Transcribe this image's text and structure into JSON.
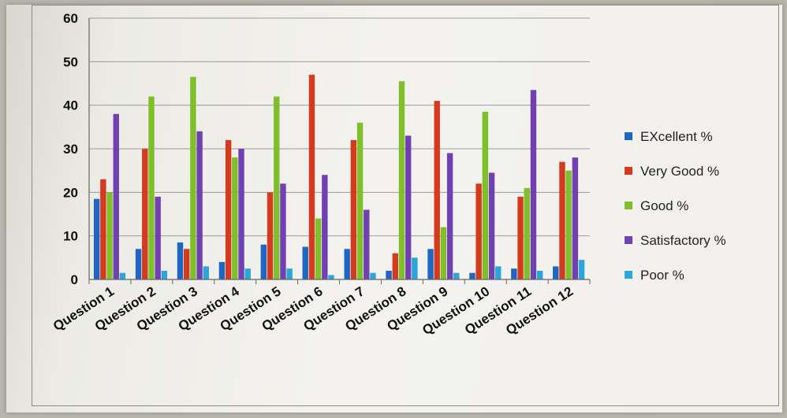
{
  "chart_data": {
    "type": "bar",
    "categories": [
      "Question 1",
      "Question 2",
      "Question 3",
      "Question 4",
      "Question 5",
      "Question 6",
      "Question 7",
      "Question 8",
      "Question 9",
      "Question 10",
      "Question 11",
      "Question 12"
    ],
    "series": [
      {
        "name": "EXcellent  %",
        "color": "#1f66c4",
        "values": [
          18.5,
          7,
          8.5,
          4,
          8,
          7.5,
          7,
          2,
          7,
          1.5,
          2.5,
          3
        ]
      },
      {
        "name": "Very Good  %",
        "color": "#d43a1e",
        "values": [
          23,
          30,
          7,
          32,
          20,
          47,
          32,
          6,
          41,
          22,
          19,
          27
        ]
      },
      {
        "name": "Good  %",
        "color": "#7fbf2a",
        "values": [
          20,
          42,
          46.5,
          28,
          42,
          14,
          36,
          45.5,
          12,
          38.5,
          21,
          25
        ]
      },
      {
        "name": "Satisfactory  %",
        "color": "#7140b3",
        "values": [
          38,
          19,
          34,
          30,
          22,
          24,
          16,
          33,
          29,
          24.5,
          43.5,
          28
        ]
      },
      {
        "name": "Poor  %",
        "color": "#2aa6db",
        "values": [
          1.5,
          2,
          3,
          2.5,
          2.5,
          1,
          1.5,
          5,
          1.5,
          3,
          2,
          4.5
        ]
      }
    ],
    "yticks": [
      "0",
      "10",
      "20",
      "30",
      "40",
      "50",
      "60"
    ],
    "ylim": [
      0,
      60
    ],
    "grid": true,
    "legend": "right"
  }
}
